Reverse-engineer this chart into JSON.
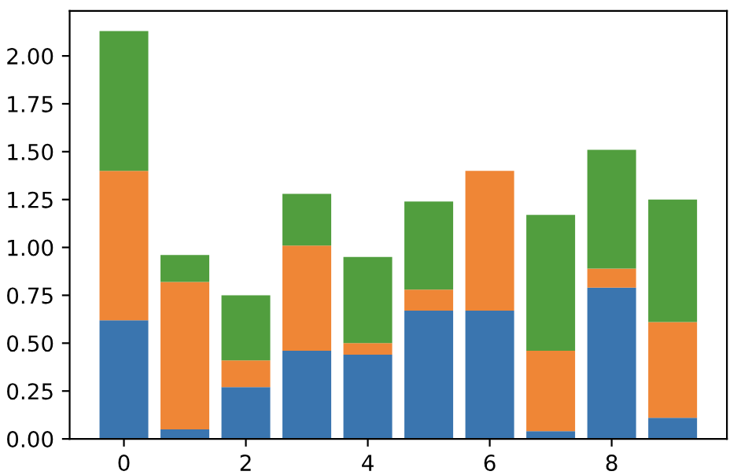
{
  "chart_data": {
    "type": "bar",
    "stacked": true,
    "x": [
      0,
      1,
      2,
      3,
      4,
      5,
      6,
      7,
      8,
      9
    ],
    "series": [
      {
        "color": "#3a75af",
        "values": [
          0.62,
          0.05,
          0.27,
          0.46,
          0.44,
          0.67,
          0.67,
          0.04,
          0.79,
          0.11
        ]
      },
      {
        "color": "#ef8636",
        "values": [
          0.78,
          0.77,
          0.14,
          0.55,
          0.06,
          0.11,
          0.73,
          0.42,
          0.1,
          0.5
        ]
      },
      {
        "color": "#519e3e",
        "values": [
          0.73,
          0.14,
          0.34,
          0.27,
          0.45,
          0.46,
          0.0,
          0.71,
          0.62,
          0.64
        ]
      }
    ],
    "xlim": [
      -0.89,
      9.89
    ],
    "xticks": [
      0,
      2,
      4,
      6,
      8
    ],
    "ylim": [
      0,
      2.235
    ],
    "yticks": [
      {
        "value": 0,
        "label": "0.00"
      },
      {
        "value": 0.25,
        "label": "0.25"
      },
      {
        "value": 0.5,
        "label": "0.50"
      },
      {
        "value": 0.75,
        "label": "0.75"
      },
      {
        "value": 1,
        "label": "1.00"
      },
      {
        "value": 1.25,
        "label": "1.25"
      },
      {
        "value": 1.5,
        "label": "1.50"
      },
      {
        "value": 1.75,
        "label": "1.75"
      },
      {
        "value": 2,
        "label": "2.00"
      }
    ],
    "grid": false,
    "legend": false
  }
}
